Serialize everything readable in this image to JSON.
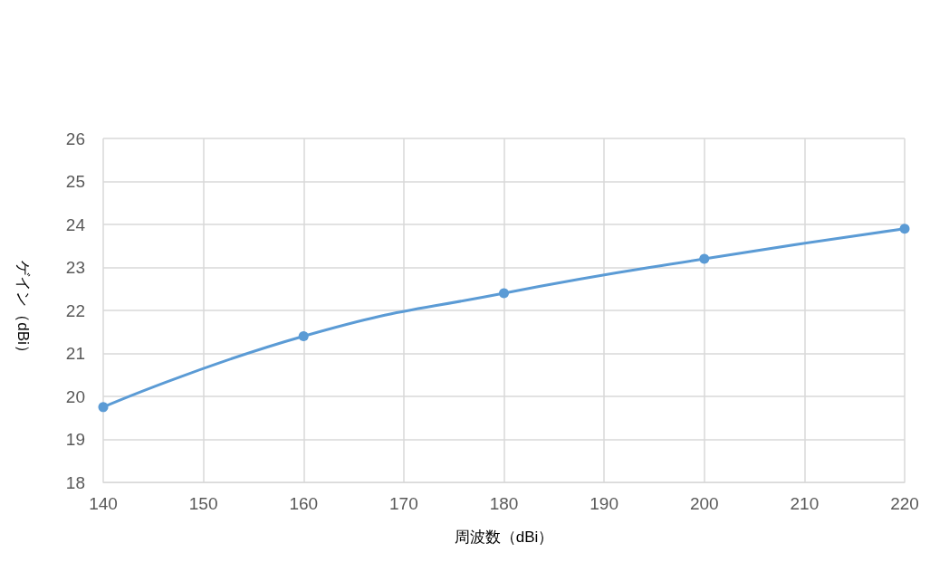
{
  "chart_data": {
    "type": "line",
    "xlabel": "周波数（dBi）",
    "ylabel": "ゲイン（dBi）",
    "x": [
      140,
      160,
      180,
      200,
      220
    ],
    "series": [
      {
        "color": "#5b9bd5",
        "values": [
          19.75,
          21.4,
          22.4,
          23.2,
          23.9
        ]
      }
    ],
    "xlim": [
      140,
      220
    ],
    "xticks": [
      140,
      150,
      160,
      170,
      180,
      190,
      200,
      210,
      220
    ],
    "ylim": [
      18,
      26
    ],
    "yticks": [
      18,
      19,
      20,
      21,
      22,
      23,
      24,
      25,
      26
    ],
    "grid": true,
    "marker": "circle",
    "line_style": "solid"
  }
}
